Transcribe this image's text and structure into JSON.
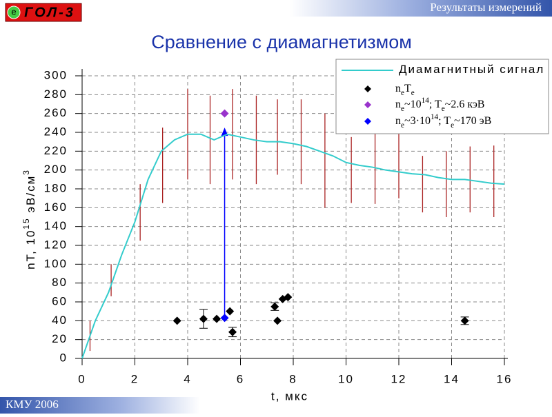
{
  "header": {
    "section": "Результаты измерений",
    "logo_e": "e",
    "logo_text": "ГОЛ-3"
  },
  "footer": {
    "text": "КМУ 2006"
  },
  "chart_data": {
    "type": "scatter",
    "title": "Сравнение с диамагнетизмом",
    "x_label": "t, мкс",
    "y_label_parts": [
      {
        "text": "nT, 10"
      },
      {
        "text": "15",
        "s": "sup"
      },
      {
        "text": " эВ/см"
      },
      {
        "text": "3",
        "s": "sup"
      }
    ],
    "xlim": [
      0,
      16
    ],
    "ylim": [
      0,
      300
    ],
    "xticks": [
      0,
      2,
      4,
      6,
      8,
      10,
      12,
      14,
      16
    ],
    "yticks": [
      0,
      20,
      40,
      60,
      80,
      100,
      120,
      140,
      160,
      180,
      200,
      220,
      240,
      260,
      280,
      300
    ],
    "grid": true,
    "legend": "upper right",
    "series": [
      {
        "kind": "line",
        "color": "#33cccc",
        "name_parts": [
          {
            "text": "Диамагнитный сигнал"
          }
        ],
        "x": [
          0,
          0.5,
          1,
          1.5,
          2,
          2.5,
          3,
          3.5,
          4,
          4.5,
          5,
          5.5,
          6,
          6.5,
          7,
          7.5,
          8,
          8.5,
          9,
          9.5,
          10,
          10.5,
          11,
          11.5,
          12,
          12.5,
          13,
          13.5,
          14,
          14.5,
          15,
          15.5,
          16
        ],
        "values": [
          0,
          40,
          70,
          110,
          145,
          190,
          220,
          232,
          238,
          238,
          232,
          238,
          235,
          232,
          230,
          230,
          228,
          225,
          220,
          215,
          208,
          205,
          203,
          200,
          198,
          196,
          195,
          192,
          190,
          190,
          188,
          186,
          185
        ]
      },
      {
        "kind": "points",
        "color": "#000000",
        "name_parts": [
          {
            "text": "n"
          },
          {
            "text": "e",
            "s": "sub"
          },
          {
            "text": "T"
          },
          {
            "text": "e",
            "s": "sub"
          }
        ],
        "x": [
          3.6,
          4.6,
          5.1,
          5.6,
          5.7,
          7.3,
          7.4,
          7.6,
          7.8,
          14.5
        ],
        "values": [
          40,
          42,
          42,
          50,
          28,
          55,
          40,
          63,
          65,
          40
        ],
        "errors": [
          null,
          10,
          null,
          null,
          5,
          4,
          null,
          null,
          null,
          4
        ]
      },
      {
        "kind": "points",
        "color": "#9933cc",
        "name_parts": [
          {
            "text": "n"
          },
          {
            "text": "e",
            "s": "sub"
          },
          {
            "text": "~10"
          },
          {
            "text": "14",
            "s": "sup"
          },
          {
            "text": "; T"
          },
          {
            "text": "e",
            "s": "sub"
          },
          {
            "text": "~2.6 кэВ"
          }
        ],
        "x": [
          5.4
        ],
        "values": [
          260
        ]
      },
      {
        "kind": "points",
        "color": "#0000ff",
        "name_parts": [
          {
            "text": "n"
          },
          {
            "text": "e",
            "s": "sub"
          },
          {
            "text": "~3·10"
          },
          {
            "text": "14",
            "s": "sup"
          },
          {
            "text": "; T"
          },
          {
            "text": "e",
            "s": "sub"
          },
          {
            "text": "~170 эВ"
          }
        ],
        "x": [
          5.4
        ],
        "values": [
          43
        ]
      }
    ],
    "error_bars": {
      "color": "#aa2222",
      "x": [
        0.3,
        1.1,
        2.2,
        3.05,
        4.0,
        4.85,
        5.7,
        6.6,
        7.4,
        8.3,
        9.2,
        10.2,
        11.1,
        12.0,
        12.9,
        13.8,
        14.7,
        15.6
      ],
      "values": [
        24,
        83,
        155,
        205,
        238,
        232,
        238,
        232,
        235,
        230,
        210,
        200,
        202,
        205,
        185,
        185,
        190,
        188
      ],
      "errors": [
        16,
        17,
        30,
        40,
        48,
        47,
        48,
        47,
        40,
        45,
        50,
        35,
        38,
        35,
        30,
        35,
        35,
        38
      ]
    },
    "arrow": {
      "x": 5.4,
      "y_from": 43,
      "y_to": 245,
      "color": "#0000ff"
    }
  }
}
